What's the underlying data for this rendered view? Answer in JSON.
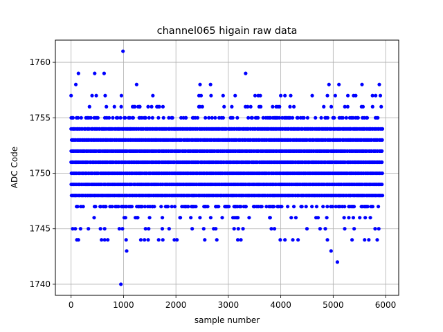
{
  "chart_data": {
    "type": "scatter",
    "title": "channel065 higain raw data",
    "xlabel": "sample number",
    "ylabel": "ADC Code",
    "xlim": [
      -300,
      6250
    ],
    "ylim": [
      1739,
      1762
    ],
    "x_ticks": [
      0,
      1000,
      2000,
      3000,
      4000,
      5000,
      6000
    ],
    "x_tick_labels": [
      "0",
      "1000",
      "2000",
      "3000",
      "4000",
      "5000",
      "6000"
    ],
    "y_ticks": [
      1740,
      1745,
      1750,
      1755,
      1760
    ],
    "y_tick_labels": [
      "1740",
      "1745",
      "1750",
      "1755",
      "1760"
    ],
    "grid": true,
    "marker_color": "#0000ff",
    "sample_range": [
      0,
      5940
    ],
    "dense_levels": [
      {
        "y": 1746,
        "share": 0.15
      },
      {
        "y": 1747,
        "share": 0.45
      },
      {
        "y": 1748,
        "share": 1.0
      },
      {
        "y": 1749,
        "share": 1.0
      },
      {
        "y": 1750,
        "share": 1.0
      },
      {
        "y": 1751,
        "share": 1.0
      },
      {
        "y": 1752,
        "share": 1.0
      },
      {
        "y": 1753,
        "share": 1.0
      },
      {
        "y": 1754,
        "share": 1.0
      },
      {
        "y": 1755,
        "share": 0.45
      },
      {
        "y": 1756,
        "share": 0.15
      }
    ],
    "sparse_points": [
      {
        "x": 950,
        "y": 1740
      },
      {
        "x": 5080,
        "y": 1742
      },
      {
        "x": 4960,
        "y": 1743
      },
      {
        "x": 1060,
        "y": 1743
      },
      {
        "x": 110,
        "y": 1744
      },
      {
        "x": 140,
        "y": 1744
      },
      {
        "x": 580,
        "y": 1744
      },
      {
        "x": 640,
        "y": 1744
      },
      {
        "x": 700,
        "y": 1744
      },
      {
        "x": 1050,
        "y": 1744
      },
      {
        "x": 1330,
        "y": 1744
      },
      {
        "x": 1400,
        "y": 1744
      },
      {
        "x": 1470,
        "y": 1744
      },
      {
        "x": 1670,
        "y": 1744
      },
      {
        "x": 1750,
        "y": 1744
      },
      {
        "x": 1970,
        "y": 1744
      },
      {
        "x": 2020,
        "y": 1744
      },
      {
        "x": 2550,
        "y": 1744
      },
      {
        "x": 2780,
        "y": 1744
      },
      {
        "x": 3180,
        "y": 1744
      },
      {
        "x": 3240,
        "y": 1744
      },
      {
        "x": 3990,
        "y": 1744
      },
      {
        "x": 4080,
        "y": 1744
      },
      {
        "x": 4230,
        "y": 1744
      },
      {
        "x": 4330,
        "y": 1744
      },
      {
        "x": 4890,
        "y": 1744
      },
      {
        "x": 5360,
        "y": 1744
      },
      {
        "x": 5600,
        "y": 1744
      },
      {
        "x": 5680,
        "y": 1744
      },
      {
        "x": 5840,
        "y": 1744
      },
      {
        "x": 30,
        "y": 1745
      },
      {
        "x": 80,
        "y": 1745
      },
      {
        "x": 180,
        "y": 1745
      },
      {
        "x": 330,
        "y": 1745
      },
      {
        "x": 560,
        "y": 1745
      },
      {
        "x": 640,
        "y": 1745
      },
      {
        "x": 920,
        "y": 1745
      },
      {
        "x": 980,
        "y": 1745
      },
      {
        "x": 1420,
        "y": 1745
      },
      {
        "x": 1480,
        "y": 1745
      },
      {
        "x": 1740,
        "y": 1745
      },
      {
        "x": 1870,
        "y": 1745
      },
      {
        "x": 2310,
        "y": 1745
      },
      {
        "x": 2530,
        "y": 1745
      },
      {
        "x": 2720,
        "y": 1745
      },
      {
        "x": 2760,
        "y": 1745
      },
      {
        "x": 3110,
        "y": 1745
      },
      {
        "x": 3190,
        "y": 1745
      },
      {
        "x": 3280,
        "y": 1745
      },
      {
        "x": 3820,
        "y": 1745
      },
      {
        "x": 3880,
        "y": 1745
      },
      {
        "x": 4500,
        "y": 1745
      },
      {
        "x": 4750,
        "y": 1745
      },
      {
        "x": 4850,
        "y": 1745
      },
      {
        "x": 5220,
        "y": 1745
      },
      {
        "x": 5400,
        "y": 1745
      },
      {
        "x": 5800,
        "y": 1745
      },
      {
        "x": 5870,
        "y": 1745
      },
      {
        "x": 0,
        "y": 1757
      },
      {
        "x": 400,
        "y": 1757
      },
      {
        "x": 480,
        "y": 1757
      },
      {
        "x": 650,
        "y": 1757
      },
      {
        "x": 960,
        "y": 1757
      },
      {
        "x": 1560,
        "y": 1757
      },
      {
        "x": 2440,
        "y": 1757
      },
      {
        "x": 2480,
        "y": 1757
      },
      {
        "x": 2670,
        "y": 1757
      },
      {
        "x": 2900,
        "y": 1757
      },
      {
        "x": 3130,
        "y": 1757
      },
      {
        "x": 3510,
        "y": 1757
      },
      {
        "x": 3570,
        "y": 1757
      },
      {
        "x": 3610,
        "y": 1757
      },
      {
        "x": 4000,
        "y": 1757
      },
      {
        "x": 4080,
        "y": 1757
      },
      {
        "x": 4190,
        "y": 1757
      },
      {
        "x": 4600,
        "y": 1757
      },
      {
        "x": 4890,
        "y": 1757
      },
      {
        "x": 5040,
        "y": 1757
      },
      {
        "x": 5280,
        "y": 1757
      },
      {
        "x": 5390,
        "y": 1757
      },
      {
        "x": 5430,
        "y": 1757
      },
      {
        "x": 5750,
        "y": 1757
      },
      {
        "x": 5810,
        "y": 1757
      },
      {
        "x": 5900,
        "y": 1757
      },
      {
        "x": 90,
        "y": 1758
      },
      {
        "x": 1250,
        "y": 1758
      },
      {
        "x": 2460,
        "y": 1758
      },
      {
        "x": 2660,
        "y": 1758
      },
      {
        "x": 4920,
        "y": 1758
      },
      {
        "x": 5110,
        "y": 1758
      },
      {
        "x": 5550,
        "y": 1758
      },
      {
        "x": 5880,
        "y": 1758
      },
      {
        "x": 140,
        "y": 1759
      },
      {
        "x": 450,
        "y": 1759
      },
      {
        "x": 630,
        "y": 1759
      },
      {
        "x": 3330,
        "y": 1759
      },
      {
        "x": 990,
        "y": 1761
      }
    ]
  }
}
